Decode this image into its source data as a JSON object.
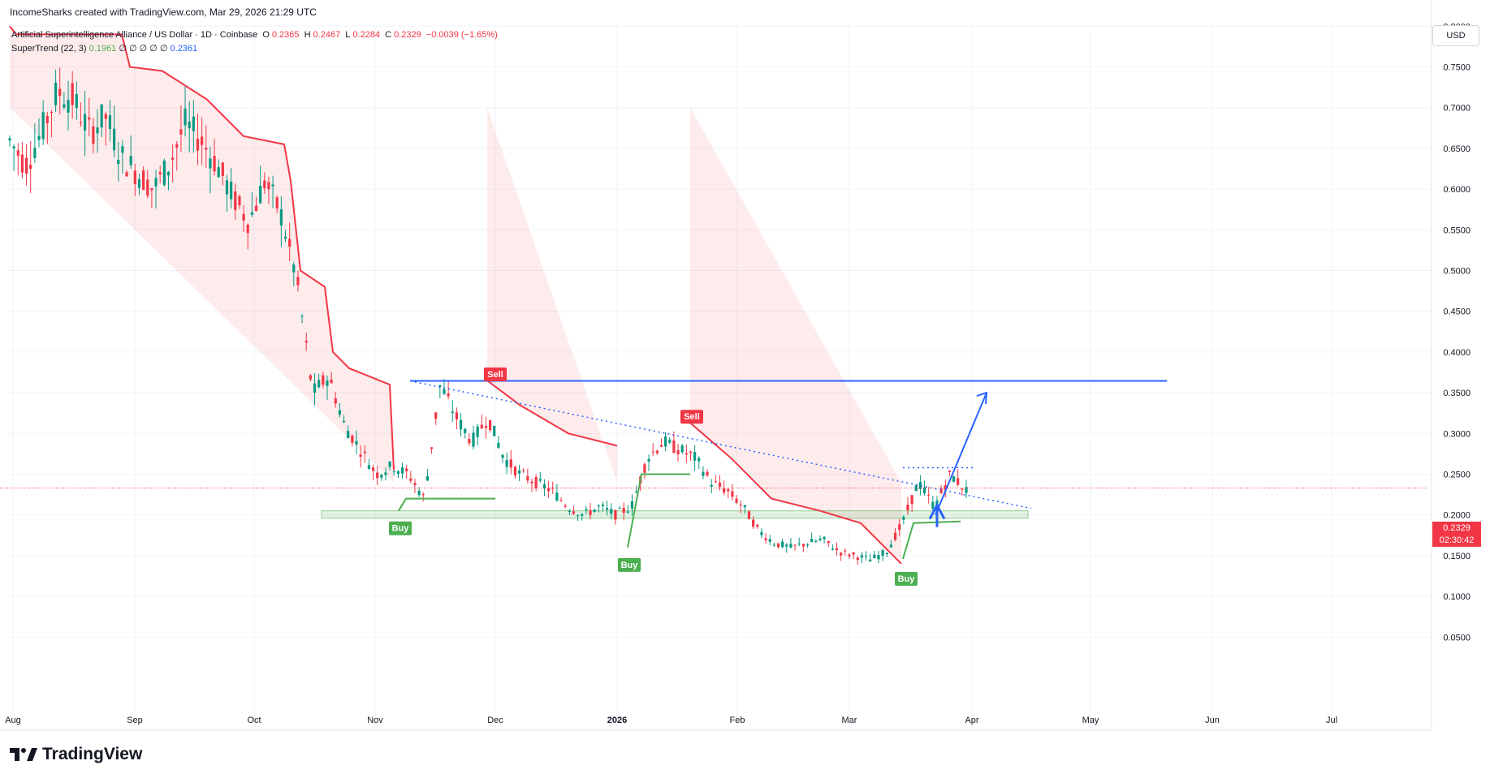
{
  "header": {
    "attribution": "IncomeSharks created with TradingView.com, Mar 29, 2026 21:29 UTC"
  },
  "legend": {
    "symbol": "Artificial Superintelligence Alliance / US Dollar · 1D · Coinbase",
    "o_label": "O",
    "o_value": "0.2365",
    "h_label": "H",
    "h_value": "0.2467",
    "l_label": "L",
    "l_value": "0.2284",
    "c_label": "C",
    "c_value": "0.2329",
    "change": "−0.0039 (−1.65%)",
    "indicator_name": "SuperTrend (22, 3)",
    "indicator_value1": "0.1961",
    "indicator_empties": "∅ ∅ ∅ ∅ ∅",
    "indicator_value2": "0.2361"
  },
  "currency_button": "USD",
  "last_price": {
    "value": "0.2329",
    "countdown": "02:30:42"
  },
  "brand": "TradingView",
  "colors": {
    "down": "#f23645",
    "up": "#089981",
    "supertrend_up": "#4caf50",
    "supertrend_down": "#f23645",
    "annotation": "#2962ff"
  },
  "chart_data": {
    "type": "candlestick",
    "x_ticks": [
      "Aug",
      "Sep",
      "Oct",
      "Nov",
      "Dec",
      "2026",
      "Feb",
      "Mar",
      "Apr",
      "May",
      "Jun",
      "Jul"
    ],
    "y_ticks": [
      "0.8000",
      "0.7500",
      "0.7000",
      "0.6500",
      "0.6000",
      "0.5500",
      "0.5000",
      "0.4500",
      "0.4000",
      "0.3500",
      "0.3000",
      "0.2500",
      "0.2000",
      "0.1500",
      "0.1000",
      "0.0500"
    ],
    "ylim": [
      0.0,
      0.84
    ],
    "grid": true,
    "signals": [
      {
        "label": "Sell",
        "date": "Dec 1",
        "price": 0.365
      },
      {
        "label": "Sell",
        "date": "Jan 14",
        "price": 0.313
      },
      {
        "label": "Buy",
        "date": "Nov 2",
        "price": 0.2
      },
      {
        "label": "Buy",
        "date": "Jan 2",
        "price": 0.155
      },
      {
        "label": "Buy",
        "date": "Mar 14",
        "price": 0.138
      }
    ],
    "annotations": {
      "resistance_line": 0.3645,
      "support_zone": [
        0.196,
        0.205
      ],
      "target_arrow": [
        0.2,
        0.35
      ]
    },
    "ohlc_path": [
      [
        0.67,
        0.7,
        0.64,
        0.66
      ],
      [
        0.66,
        0.69,
        0.61,
        0.63
      ],
      [
        0.63,
        0.68,
        0.62,
        0.67
      ],
      [
        0.67,
        0.73,
        0.65,
        0.72
      ],
      [
        0.72,
        0.77,
        0.69,
        0.71
      ],
      [
        0.71,
        0.73,
        0.65,
        0.67
      ],
      [
        0.67,
        0.7,
        0.64,
        0.69
      ],
      [
        0.69,
        0.7,
        0.63,
        0.64
      ],
      [
        0.64,
        0.66,
        0.61,
        0.62
      ],
      [
        0.62,
        0.65,
        0.58,
        0.6
      ],
      [
        0.6,
        0.64,
        0.59,
        0.63
      ],
      [
        0.63,
        0.7,
        0.62,
        0.68
      ],
      [
        0.68,
        0.7,
        0.64,
        0.66
      ],
      [
        0.66,
        0.69,
        0.62,
        0.63
      ],
      [
        0.63,
        0.65,
        0.58,
        0.59
      ],
      [
        0.59,
        0.63,
        0.55,
        0.56
      ],
      [
        0.56,
        0.62,
        0.53,
        0.61
      ],
      [
        0.61,
        0.62,
        0.56,
        0.57
      ],
      [
        0.57,
        0.59,
        0.48,
        0.49
      ],
      [
        0.49,
        0.51,
        0.26,
        0.35
      ],
      [
        0.35,
        0.41,
        0.34,
        0.37
      ],
      [
        0.37,
        0.38,
        0.3,
        0.31
      ],
      [
        0.31,
        0.33,
        0.27,
        0.28
      ],
      [
        0.28,
        0.3,
        0.23,
        0.25
      ],
      [
        0.25,
        0.28,
        0.24,
        0.26
      ],
      [
        0.26,
        0.28,
        0.24,
        0.25
      ],
      [
        0.25,
        0.26,
        0.2,
        0.22
      ],
      [
        0.22,
        0.46,
        0.21,
        0.36
      ],
      [
        0.36,
        0.41,
        0.3,
        0.32
      ],
      [
        0.32,
        0.35,
        0.28,
        0.29
      ],
      [
        0.29,
        0.34,
        0.27,
        0.32
      ],
      [
        0.32,
        0.33,
        0.27,
        0.27
      ],
      [
        0.27,
        0.29,
        0.24,
        0.25
      ],
      [
        0.25,
        0.27,
        0.23,
        0.24
      ],
      [
        0.24,
        0.26,
        0.22,
        0.23
      ],
      [
        0.23,
        0.24,
        0.2,
        0.21
      ],
      [
        0.21,
        0.22,
        0.19,
        0.2
      ],
      [
        0.2,
        0.22,
        0.19,
        0.21
      ],
      [
        0.21,
        0.21,
        0.19,
        0.2
      ],
      [
        0.2,
        0.22,
        0.19,
        0.21
      ],
      [
        0.21,
        0.29,
        0.2,
        0.27
      ],
      [
        0.27,
        0.31,
        0.26,
        0.29
      ],
      [
        0.29,
        0.31,
        0.27,
        0.28
      ],
      [
        0.28,
        0.3,
        0.26,
        0.27
      ],
      [
        0.27,
        0.28,
        0.23,
        0.24
      ],
      [
        0.24,
        0.25,
        0.22,
        0.23
      ],
      [
        0.23,
        0.24,
        0.2,
        0.21
      ],
      [
        0.21,
        0.22,
        0.17,
        0.18
      ],
      [
        0.18,
        0.19,
        0.16,
        0.165
      ],
      [
        0.165,
        0.18,
        0.135,
        0.16
      ],
      [
        0.16,
        0.175,
        0.15,
        0.165
      ],
      [
        0.165,
        0.18,
        0.155,
        0.17
      ],
      [
        0.17,
        0.18,
        0.15,
        0.155
      ],
      [
        0.155,
        0.165,
        0.145,
        0.15
      ],
      [
        0.15,
        0.16,
        0.14,
        0.145
      ],
      [
        0.145,
        0.16,
        0.14,
        0.155
      ],
      [
        0.155,
        0.2,
        0.15,
        0.19
      ],
      [
        0.19,
        0.26,
        0.18,
        0.24
      ],
      [
        0.24,
        0.25,
        0.2,
        0.21
      ],
      [
        0.21,
        0.27,
        0.2,
        0.25
      ],
      [
        0.25,
        0.26,
        0.22,
        0.23
      ]
    ]
  }
}
